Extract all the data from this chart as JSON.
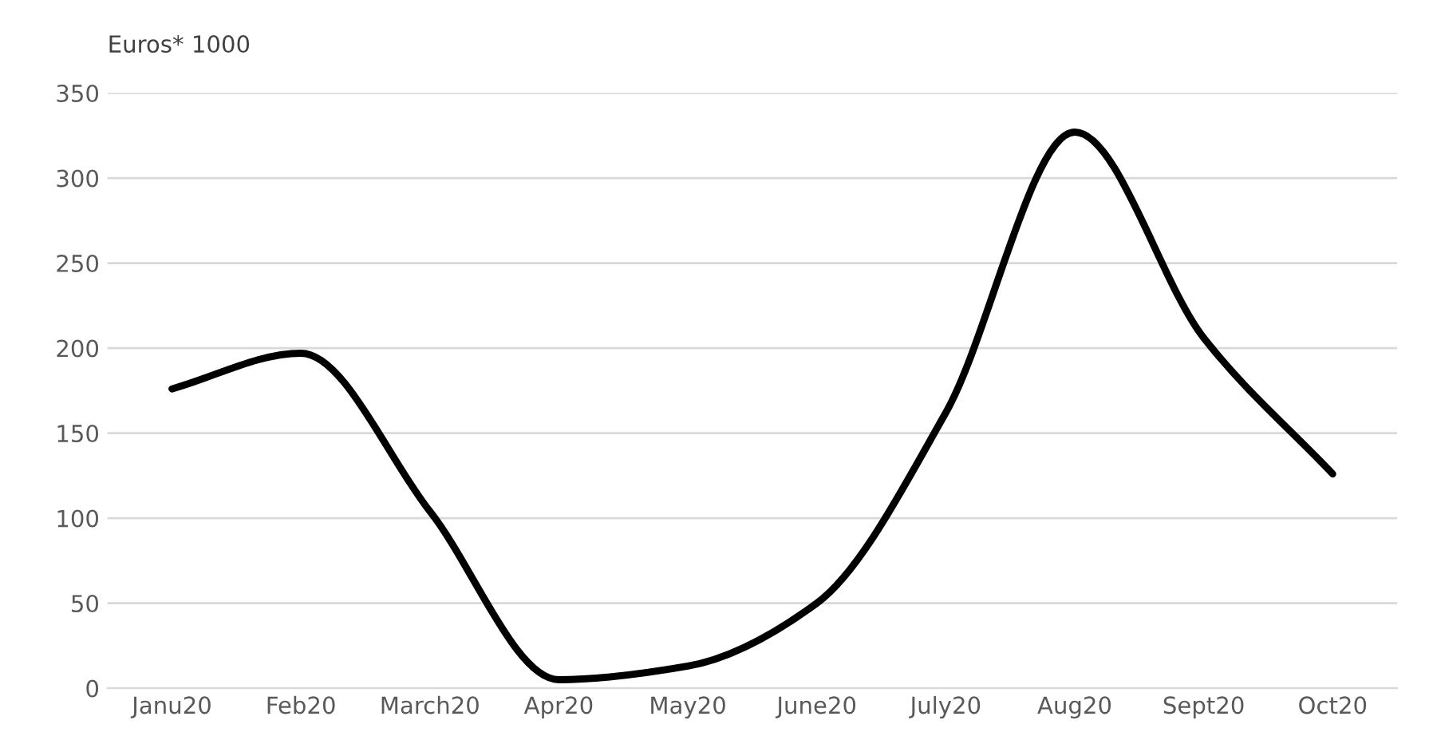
{
  "chart_data": {
    "type": "line",
    "ylabel": "Euros* 1000",
    "categories": [
      "Janu20",
      "Feb20",
      "March20",
      "Apr20",
      "May20",
      "June20",
      "July20",
      "Aug20",
      "Sept20",
      "Oct20"
    ],
    "series": [
      {
        "color": "#000000",
        "values": [
          176,
          197,
          104,
          5,
          13,
          50,
          162,
          327,
          206,
          126
        ]
      }
    ],
    "ylim": [
      0,
      350
    ],
    "yticks": [
      0,
      50,
      100,
      150,
      200,
      250,
      300,
      350
    ],
    "grid": "y",
    "marker": "none",
    "line_style": "solid"
  }
}
